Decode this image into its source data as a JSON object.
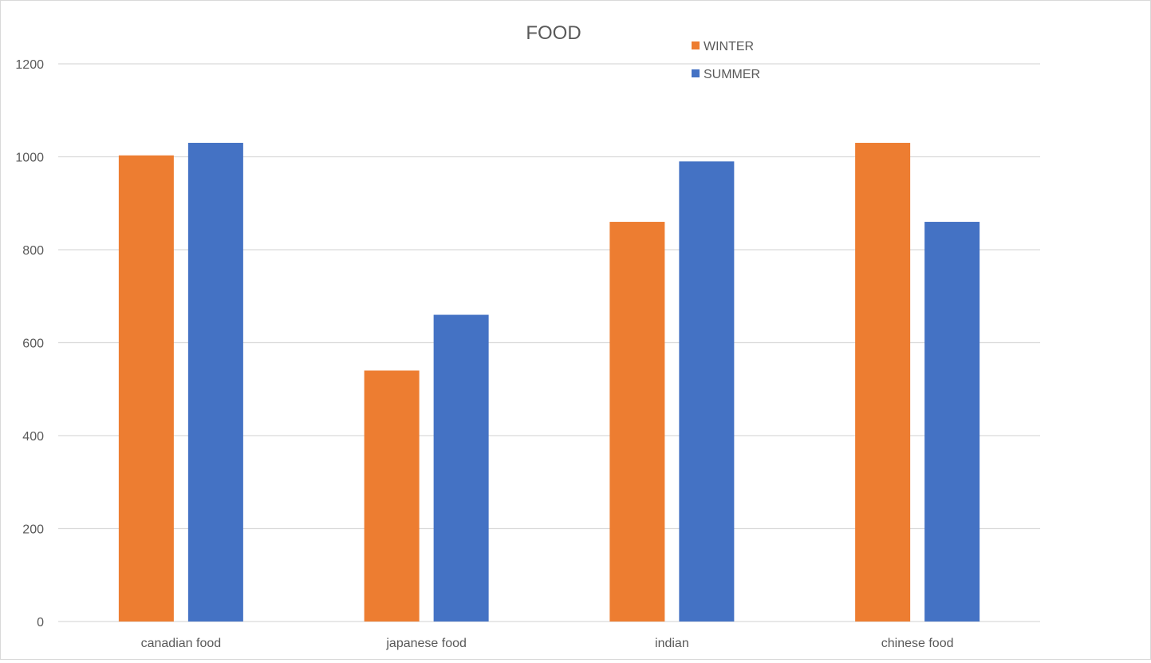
{
  "chart_data": {
    "type": "bar",
    "title": "FOOD",
    "categories": [
      "canadian food",
      "japanese food",
      "indian",
      "chinese food"
    ],
    "series": [
      {
        "name": "WINTER",
        "color": "#ED7D31",
        "values": [
          1003,
          540,
          860,
          1030
        ]
      },
      {
        "name": "SUMMER",
        "color": "#4472C4",
        "values": [
          1030,
          660,
          990,
          860
        ]
      }
    ],
    "ylim": [
      0,
      1200
    ],
    "yticks": [
      0,
      200,
      400,
      600,
      800,
      1000,
      1200
    ],
    "grid": true,
    "legend_position": "top-right"
  }
}
